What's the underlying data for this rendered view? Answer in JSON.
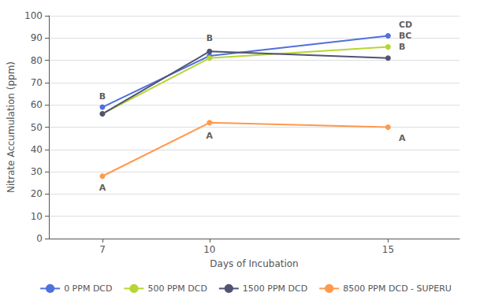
{
  "chart_data": {
    "type": "line",
    "x": [
      7,
      10,
      15
    ],
    "series": [
      {
        "name": "0 PPM DCD",
        "values": [
          59,
          82,
          91
        ],
        "marker": "circle"
      },
      {
        "name": "500 PPM DCD",
        "values": [
          56,
          81,
          86
        ],
        "marker": "circle"
      },
      {
        "name": "1500 PPM DCD",
        "values": [
          56,
          84,
          81
        ],
        "marker": "circle"
      },
      {
        "name": "8500 PPM DCD - SUPERU",
        "values": [
          28,
          52,
          50
        ],
        "marker": "circle"
      }
    ],
    "xlabel": "Days of Incubation",
    "ylabel": "Nitrate Accumulation (ppm)",
    "xlim": [
      5.5,
      17
    ],
    "ylim": [
      0,
      100
    ],
    "xticks": [
      7,
      10,
      15
    ],
    "yticks": [
      0,
      10,
      20,
      30,
      40,
      50,
      60,
      70,
      80,
      90,
      100
    ],
    "grid": true,
    "legend": "bottom",
    "annotations": [
      {
        "text": "B",
        "x": 7,
        "y": 62
      },
      {
        "text": "A",
        "x": 7,
        "y": 21
      },
      {
        "text": "B",
        "x": 10,
        "y": 88
      },
      {
        "text": "A",
        "x": 10,
        "y": 44
      },
      {
        "text": "CD",
        "x": 15.3,
        "y": 94
      },
      {
        "text": "BC",
        "x": 15.3,
        "y": 89
      },
      {
        "text": "B",
        "x": 15.3,
        "y": 84
      },
      {
        "text": "A",
        "x": 15.3,
        "y": 43
      }
    ]
  }
}
